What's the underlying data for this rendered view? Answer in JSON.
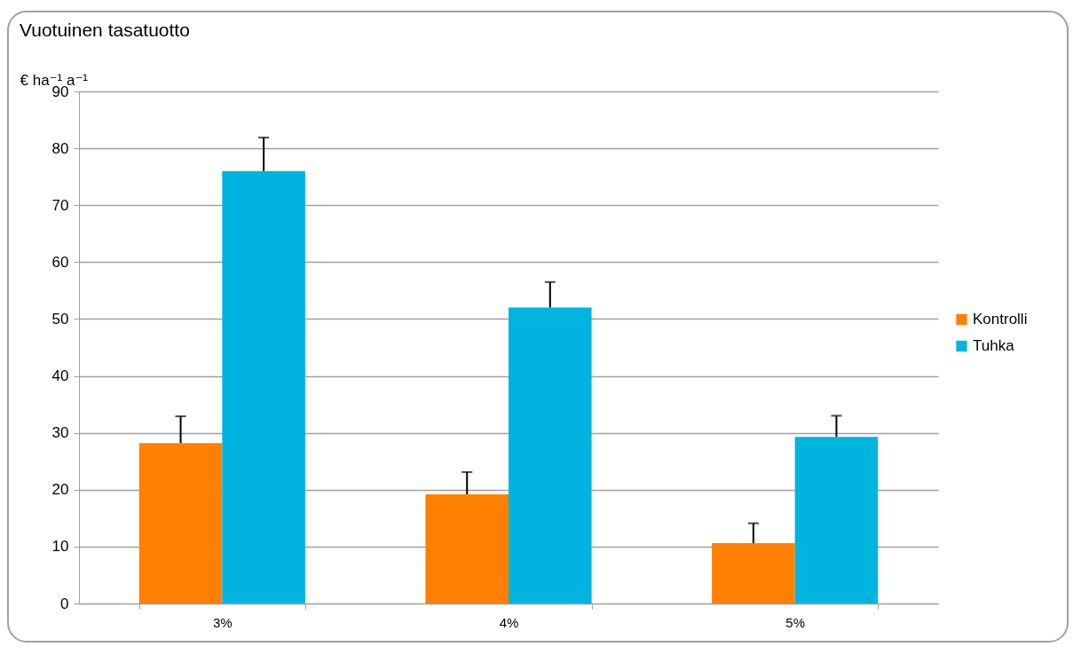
{
  "chart_data": {
    "type": "bar",
    "title": "Vuotuinen tasatuotto",
    "ylabel": "€ ha⁻¹ a⁻¹",
    "categories": [
      "3%",
      "4%",
      "5%"
    ],
    "series": [
      {
        "name": "Kontrolli",
        "color": "#ff8000",
        "values": [
          28.2,
          19.2,
          10.6
        ],
        "errors": [
          [
            28.2,
            32.9
          ],
          [
            19.2,
            23.1
          ],
          [
            10.6,
            14.1
          ]
        ]
      },
      {
        "name": "Tuhka",
        "color": "#00b4e0",
        "values": [
          76.0,
          52.0,
          29.3
        ],
        "errors": [
          [
            76.0,
            81.9
          ],
          [
            52.0,
            56.5
          ],
          [
            29.3,
            33.0
          ]
        ]
      }
    ],
    "ylim": [
      0,
      90
    ],
    "yticks": [
      0,
      10,
      20,
      30,
      40,
      50,
      60,
      70,
      80,
      90
    ],
    "grid": "y",
    "legend": "right"
  }
}
